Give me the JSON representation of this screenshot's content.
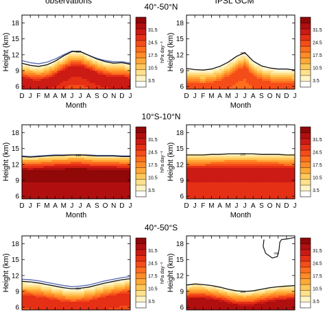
{
  "figure": {
    "col_titles": [
      "observations",
      "IPSL GCM"
    ],
    "row_titles": [
      "40°-50°N",
      "10°S-10°N",
      "40°-50°S"
    ]
  },
  "chart_data": {
    "type": "heatmap",
    "x": {
      "label": "Month",
      "ticks": [
        "D",
        "J",
        "F",
        "M",
        "A",
        "M",
        "J",
        "J",
        "A",
        "S",
        "O",
        "N",
        "D",
        "J"
      ]
    },
    "y": {
      "label": "Height (km)",
      "ticks": [
        6,
        9,
        12,
        15,
        18
      ],
      "ylim": [
        5.5,
        19.5
      ]
    },
    "colorbar": {
      "label": "hPa day⁻¹",
      "tick_labels": [
        "3.5",
        "10.5",
        "17.5",
        "24.5",
        "31.5"
      ],
      "tick_values": [
        3.5,
        10.5,
        17.5,
        24.5,
        31.5
      ],
      "range": [
        0,
        38.5
      ],
      "colors": [
        "#ffffff",
        "#fff3c4",
        "#ffe08c",
        "#ffc85a",
        "#ffaa38",
        "#ff8c28",
        "#ff6e1e",
        "#f54d19",
        "#e53016",
        "#cc1a14",
        "#b00f10",
        "#900808"
      ]
    },
    "panels": [
      {
        "row": 0,
        "col": 0,
        "contour_label": "200",
        "show_blue": true,
        "blue_line": [
          10.9,
          10.5,
          10.3,
          10.6,
          11.2,
          12.0,
          12.7,
          12.6,
          11.9,
          11.3,
          10.9,
          10.7,
          10.7,
          10.4
        ],
        "contour_line": [
          10.4,
          10.0,
          9.8,
          10.1,
          10.8,
          11.8,
          12.6,
          12.6,
          11.9,
          11.2,
          10.7,
          10.4,
          10.5,
          10.2
        ],
        "peak": 31.0
      },
      {
        "row": 0,
        "col": 1,
        "contour_label": "200",
        "show_blue": false,
        "contour_line": [
          9.4,
          9.2,
          9.1,
          9.3,
          9.8,
          10.6,
          11.7,
          12.4,
          10.8,
          9.9,
          9.5,
          9.3,
          9.3,
          9.1
        ],
        "peak": 24.5
      },
      {
        "row": 1,
        "col": 0,
        "contour_label": "210",
        "show_blue": true,
        "blue_line": [
          13.6,
          13.5,
          13.6,
          13.7,
          13.8,
          13.8,
          13.8,
          13.8,
          13.8,
          13.7,
          13.7,
          13.7,
          13.6,
          13.6
        ],
        "contour_line": [
          13.5,
          13.4,
          13.5,
          13.6,
          13.7,
          13.7,
          13.8,
          13.8,
          13.7,
          13.6,
          13.6,
          13.6,
          13.5,
          13.5
        ],
        "peak": 38.0
      },
      {
        "row": 1,
        "col": 1,
        "contour_label": "210",
        "show_blue": false,
        "contour_line": [
          13.8,
          13.8,
          13.8,
          13.9,
          13.9,
          14.0,
          14.0,
          14.0,
          14.0,
          13.9,
          13.9,
          13.9,
          13.8,
          13.8
        ],
        "peak": 31.0
      },
      {
        "row": 2,
        "col": 0,
        "contour_label": "200",
        "show_blue": true,
        "blue_line": [
          11.3,
          11.2,
          11.0,
          10.7,
          10.4,
          10.1,
          9.9,
          10.0,
          10.2,
          10.6,
          11.0,
          11.3,
          11.6,
          11.8
        ],
        "contour_line": [
          10.9,
          10.8,
          10.6,
          10.3,
          10.0,
          9.7,
          9.5,
          9.6,
          9.8,
          10.2,
          10.6,
          10.9,
          11.2,
          11.4
        ],
        "peak": 28.0
      },
      {
        "row": 2,
        "col": 1,
        "contour_label": "200",
        "show_blue": false,
        "contour_line": [
          10.2,
          10.4,
          10.3,
          10.1,
          9.8,
          9.4,
          9.1,
          9.0,
          9.1,
          9.4,
          9.7,
          9.9,
          10.0,
          10.1
        ],
        "extra_contour": {
          "label": "200",
          "points": [
            [
              9.3,
              18.8
            ],
            [
              9.2,
              17.5
            ],
            [
              9.5,
              16.2
            ],
            [
              10.3,
              15.3
            ],
            [
              10.9,
              15.6
            ],
            [
              11.1,
              16.8
            ],
            [
              11.2,
              18.3
            ],
            [
              11.4,
              18.8
            ],
            [
              12.0,
              18.9
            ],
            [
              13.0,
              19.2
            ]
          ]
        },
        "peak": 35.0
      }
    ]
  }
}
